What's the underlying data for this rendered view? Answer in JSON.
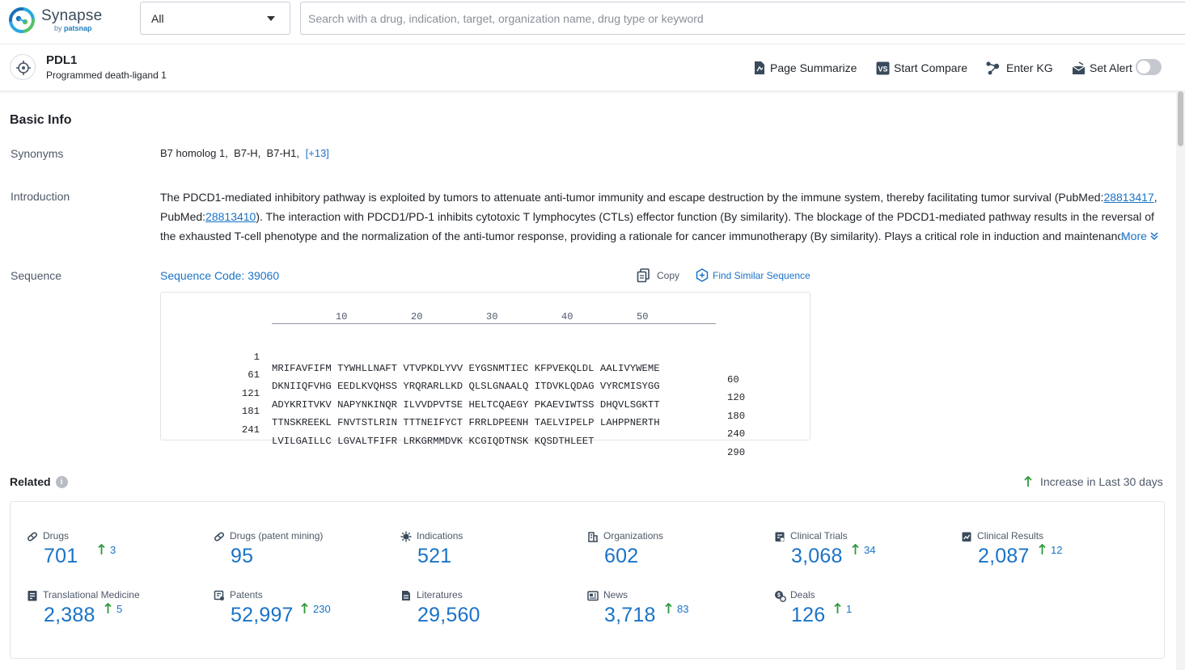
{
  "app": {
    "logo_name": "Synapse",
    "logo_by": "by",
    "logo_brand": "patsnap"
  },
  "search": {
    "scope": "All",
    "placeholder": "Search with a drug, indication, target, organization name, drug type or keyword"
  },
  "target": {
    "title": "PDL1",
    "subtitle": "Programmed death-ligand 1",
    "actions": {
      "summarize": "Page Summarize",
      "compare": "Start Compare",
      "kg": "Enter KG",
      "alert": "Set Alert"
    },
    "alert_enabled": false
  },
  "basic_info": {
    "title": "Basic Info",
    "synonyms_label": "Synonyms",
    "synonyms": [
      "B7 homolog 1,",
      "B7-H,",
      "B7-H1,"
    ],
    "synonyms_more": "[+13]",
    "intro_label": "Introduction",
    "intro_part1": "The PDCD1-mediated inhibitory pathway is exploited by tumors to attenuate anti-tumor immunity and escape destruction by the immune system, thereby facilitating tumor survival (PubMed:",
    "intro_link1": "28813417",
    "intro_part2": ", PubMed:",
    "intro_link2": "28813410",
    "intro_part3": "). The interaction with PDCD1/PD-1 inhibits cytotoxic T lymphocytes (CTLs) effector function (By similarity). The blockage of the PDCD1-mediated pathway results in the reversal of the exhausted T-cell phenotype and the normalization of the anti-tumor response, providing a rationale for cancer immunotherapy (By similarity). Plays a critical role in induction and maintenance",
    "intro_more": "More",
    "sequence_label": "Sequence",
    "sequence_code": "Sequence Code: 39060",
    "copy_label": "Copy",
    "find_similar_label": "Find Similar Sequence",
    "ruler": [
      "10",
      "20",
      "30",
      "40",
      "50"
    ],
    "rows": [
      {
        "start": "1",
        "residues": "MRIFAVFIFM TYWHLLNAFT VTVPKDLYVV EYGSNMTIEC KFPVEKQLDL AALIVYWEME",
        "end": "60"
      },
      {
        "start": "61",
        "residues": "DKNIIQFVHG EEDLKVQHSS YRQRARLLKD QLSLGNAALQ ITDVKLQDAG VYRCMISYGG",
        "end": "120"
      },
      {
        "start": "121",
        "residues": "ADYKRITVKV NAPYNKINQR ILVVDPVTSE HELTCQAEGY PKAEVIWTSS DHQVLSGKTT",
        "end": "180"
      },
      {
        "start": "181",
        "residues": "TTNSKREEKL FNVTSTLRIN TTTNEIFYCT FRRLDPEENH TAELVIPELP LAHPPNERTH",
        "end": "240"
      },
      {
        "start": "241",
        "residues": "LVILGAILLC LGVALTFIFR LRKGRMMDVK KCGIQDTNSK KQSDTHLEET",
        "end": "290"
      }
    ]
  },
  "related": {
    "title": "Related",
    "info_icon": "i",
    "legend": "Increase in Last 30 days",
    "accent": "#1a73c7",
    "increase_color": "#2e9a3c",
    "stats": [
      {
        "label": "Drugs",
        "value": "701",
        "increase": "3",
        "icon": "pill-icon"
      },
      {
        "label": "Drugs (patent mining)",
        "value": "95",
        "increase": "",
        "icon": "pill-icon"
      },
      {
        "label": "Indications",
        "value": "521",
        "increase": "",
        "icon": "virus-icon"
      },
      {
        "label": "Organizations",
        "value": "602",
        "increase": "",
        "icon": "building-icon"
      },
      {
        "label": "Clinical Trials",
        "value": "3,068",
        "increase": "34",
        "icon": "clipboard-icon"
      },
      {
        "label": "Clinical Results",
        "value": "2,087",
        "increase": "12",
        "icon": "chart-doc-icon"
      },
      {
        "label": "Translational Medicine",
        "value": "2,388",
        "increase": "5",
        "icon": "book-icon"
      },
      {
        "label": "Patents",
        "value": "52,997",
        "increase": "230",
        "icon": "patent-icon"
      },
      {
        "label": "Literatures",
        "value": "29,560",
        "increase": "",
        "icon": "document-icon"
      },
      {
        "label": "News",
        "value": "3,718",
        "increase": "83",
        "icon": "news-icon"
      },
      {
        "label": "Deals",
        "value": "126",
        "increase": "1",
        "icon": "deal-icon"
      }
    ]
  }
}
